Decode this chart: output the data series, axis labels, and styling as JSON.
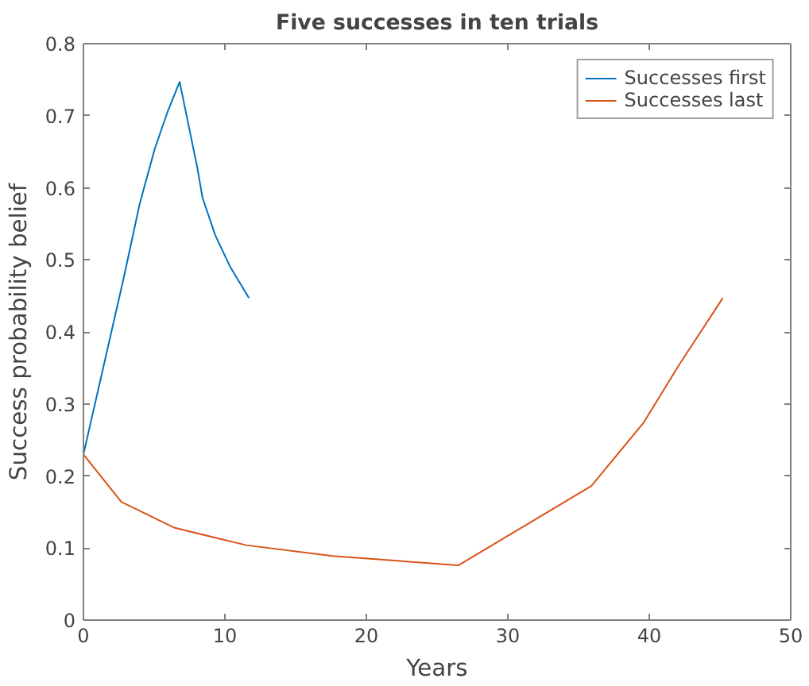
{
  "chart_data": {
    "type": "line",
    "title": "Five successes in ten trials",
    "xlabel": "Years",
    "ylabel": "Success probability belief",
    "xlim": [
      0,
      50
    ],
    "xticks": [
      0,
      10,
      20,
      30,
      40,
      50
    ],
    "ylim": [
      0,
      0.8
    ],
    "yticks": [
      0,
      0.1,
      0.2,
      0.3,
      0.4,
      0.5,
      0.6,
      0.7,
      0.8
    ],
    "grid": false,
    "legend": "top right",
    "line_style": "solid",
    "series": [
      {
        "name": "Successes first",
        "color": "#0072bd",
        "x": [
          0,
          2.86,
          3.98,
          5.04,
          5.94,
          6.8,
          8.05,
          8.42,
          9.32,
          10.38,
          11.7
        ],
        "values": [
          0.23,
          0.476,
          0.578,
          0.654,
          0.705,
          0.747,
          0.628,
          0.586,
          0.534,
          0.49,
          0.447
        ]
      },
      {
        "name": "Successes last",
        "color": "#d95319",
        "x": [
          0,
          2.68,
          6.45,
          11.5,
          17.6,
          26.5,
          35.9,
          39.6,
          42.1,
          45.2
        ],
        "values": [
          0.23,
          0.164,
          0.128,
          0.104,
          0.089,
          0.076,
          0.186,
          0.274,
          0.354,
          0.447
        ]
      }
    ]
  }
}
